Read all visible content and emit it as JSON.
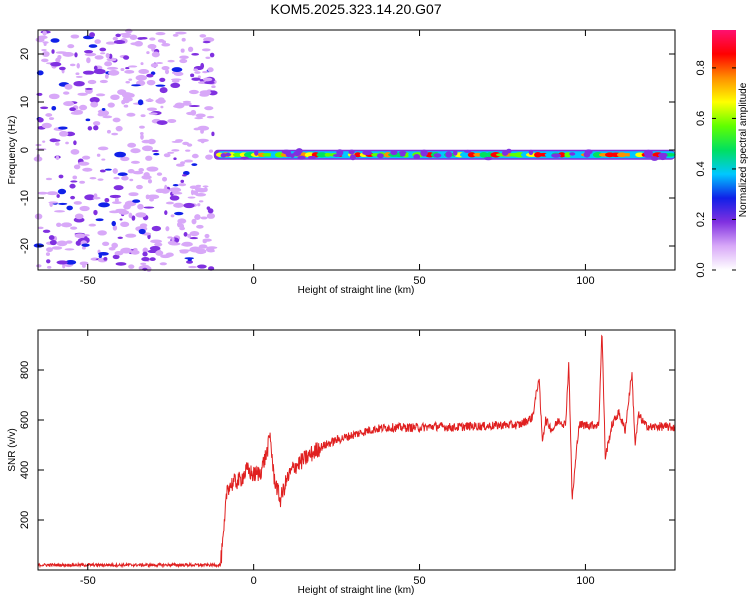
{
  "title": "KOM5.2025.323.14.20.G07",
  "chart_data": [
    {
      "type": "heatmap",
      "xlabel": "Height of straight line (km)",
      "ylabel": "Frequency (Hz)",
      "xlim": [
        -65,
        127
      ],
      "ylim": [
        -25,
        25
      ],
      "xticks": [
        -50,
        0,
        50,
        100
      ],
      "yticks": [
        -20,
        -10,
        0,
        10,
        20
      ],
      "grid": false,
      "colorbar": {
        "label": "Normalized spectral amplitude",
        "range": [
          0,
          0.95
        ],
        "ticks": [
          0.0,
          0.2,
          0.4,
          0.6,
          0.8
        ],
        "colormap": [
          "#ffffff",
          "#d8a8f8",
          "#8030e0",
          "#1020e8",
          "#00c8ff",
          "#00e060",
          "#60ff00",
          "#ffff00",
          "#ff9000",
          "#ff0000",
          "#ff1070"
        ]
      },
      "description_points": {
        "noise_region_x": [
          -65,
          -12
        ],
        "signal_line_x": [
          -12,
          127
        ],
        "signal_frequency_hz": -1
      }
    },
    {
      "type": "line",
      "xlabel": "Height of straight line (km)",
      "ylabel": "SNR (v/v)",
      "xlim": [
        -65,
        127
      ],
      "ylim": [
        0,
        960
      ],
      "xticks": [
        -50,
        0,
        50,
        100
      ],
      "yticks": [
        200,
        400,
        600,
        800
      ],
      "grid": false,
      "color": "#e02020",
      "series": [
        {
          "x": [
            -65,
            -55,
            -45,
            -35,
            -25,
            -15,
            -10,
            -9,
            -8,
            -6,
            -4,
            -2,
            0,
            2,
            4,
            5,
            6,
            8,
            10,
            12,
            15,
            20,
            25,
            30,
            35,
            40,
            45,
            50,
            55,
            60,
            65,
            70,
            75,
            80,
            84,
            86,
            87,
            88,
            90,
            92,
            94,
            95,
            96,
            98,
            100,
            102,
            104,
            105,
            106,
            108,
            110,
            112,
            114,
            115,
            116,
            118,
            120,
            122,
            127
          ],
          "y": [
            20,
            20,
            20,
            20,
            20,
            20,
            20,
            140,
            330,
            350,
            360,
            400,
            380,
            390,
            470,
            540,
            380,
            280,
            360,
            410,
            440,
            490,
            520,
            540,
            560,
            570,
            570,
            570,
            575,
            570,
            575,
            575,
            580,
            580,
            610,
            770,
            520,
            600,
            560,
            600,
            580,
            830,
            280,
            580,
            580,
            580,
            580,
            960,
            450,
            580,
            630,
            560,
            790,
            500,
            620,
            580,
            570,
            575,
            570
          ]
        }
      ]
    }
  ]
}
